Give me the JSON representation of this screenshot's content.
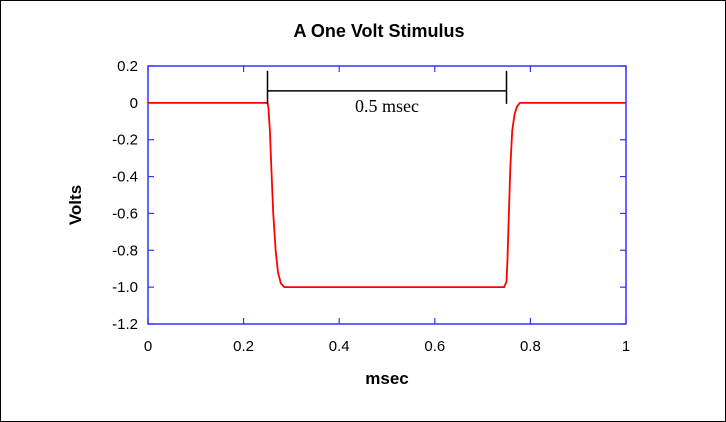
{
  "chart_data": {
    "type": "line",
    "title": "A One Volt Stimulus",
    "xlabel": "msec",
    "ylabel": "Volts",
    "xlim": [
      0,
      1
    ],
    "ylim": [
      -1.2,
      0.2
    ],
    "grid": false,
    "x_ticks": [
      {
        "value": 0,
        "label": "0"
      },
      {
        "value": 0.2,
        "label": "0.2"
      },
      {
        "value": 0.4,
        "label": "0.4"
      },
      {
        "value": 0.6,
        "label": "0.6"
      },
      {
        "value": 0.8,
        "label": "0.8"
      },
      {
        "value": 1,
        "label": "1"
      }
    ],
    "y_ticks": [
      {
        "value": 0.2,
        "label": "0.2"
      },
      {
        "value": 0,
        "label": "0"
      },
      {
        "value": -0.2,
        "label": "-0.2"
      },
      {
        "value": -0.4,
        "label": "-0.4"
      },
      {
        "value": -0.6,
        "label": "-0.6"
      },
      {
        "value": -0.8,
        "label": "-0.8"
      },
      {
        "value": -1.0,
        "label": "-1.0"
      },
      {
        "value": -1.2,
        "label": "-1.2"
      }
    ],
    "series": [
      {
        "color": "#ff0000",
        "x": [
          0,
          0.25,
          0.252,
          0.255,
          0.258,
          0.262,
          0.267,
          0.272,
          0.278,
          0.285,
          0.745,
          0.75,
          0.752,
          0.755,
          0.758,
          0.762,
          0.767,
          0.772,
          0.778,
          1
        ],
        "y": [
          0,
          0,
          -0.03,
          -0.15,
          -0.35,
          -0.6,
          -0.8,
          -0.92,
          -0.98,
          -1.0,
          -1.0,
          -0.97,
          -0.85,
          -0.6,
          -0.35,
          -0.15,
          -0.06,
          -0.02,
          0,
          0
        ]
      }
    ],
    "annotations": [
      {
        "text": "0.5 msec",
        "x_start": 0.25,
        "x_end": 0.75,
        "y": 0.065
      }
    ]
  },
  "colors": {
    "axis_frame": "#3333ff",
    "series_line": "#ff0000",
    "annotation": "#000000"
  }
}
